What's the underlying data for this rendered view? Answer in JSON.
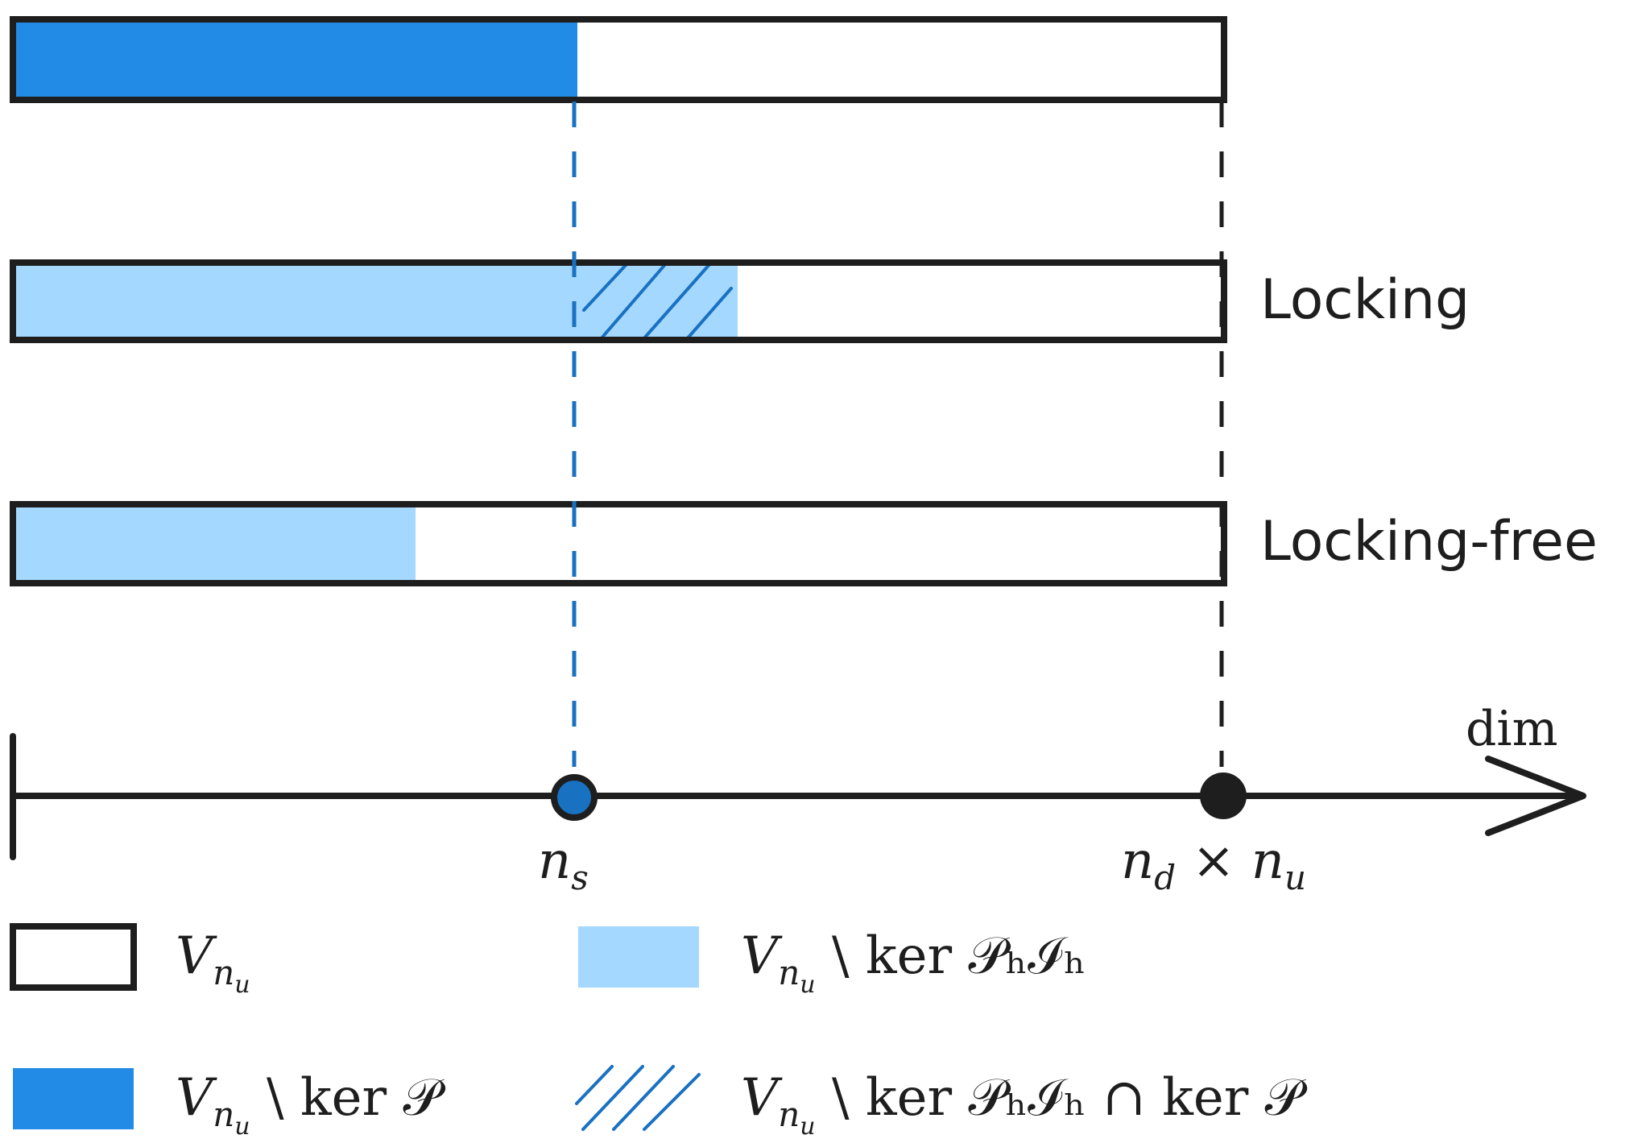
{
  "colors": {
    "stroke": "#1e1e1e",
    "dark_blue": "#228be6",
    "light_blue": "#a5d8ff",
    "line_blue": "#1971c2"
  },
  "bars": [
    {
      "fill_color": "dark_blue",
      "filled_fraction": 0.465,
      "hatched_fraction": 0,
      "label": ""
    },
    {
      "fill_color": "light_blue",
      "filled_fraction": 0.597,
      "hatched_fraction": 0.133,
      "label": "Locking"
    },
    {
      "fill_color": "light_blue",
      "filled_fraction": 0.332,
      "hatched_fraction": 0,
      "label": "Locking-free"
    }
  ],
  "axis": {
    "label": "dim",
    "marker_ns": {
      "sym": "n",
      "sub": "s"
    },
    "marker_nd": {
      "sym1": "n",
      "sub1": "d",
      "op": "×",
      "sym2": "n",
      "sub2": "u"
    }
  },
  "legend": [
    {
      "swatch": "outline",
      "sym": "V",
      "sub": "n",
      "subsub": "u",
      "rest": ""
    },
    {
      "swatch": "light_blue",
      "sym": "V",
      "sub": "n",
      "subsub": "u",
      "rest": " \\ ker 𝒫ₕℐₕ"
    },
    {
      "swatch": "dark_blue",
      "sym": "V",
      "sub": "n",
      "subsub": "u",
      "rest": " \\ ker 𝒫"
    },
    {
      "swatch": "hatch",
      "sym": "V",
      "sub": "n",
      "subsub": "u",
      "rest": " \\ ker 𝒫ₕℐₕ ∩ ker 𝒫"
    }
  ]
}
